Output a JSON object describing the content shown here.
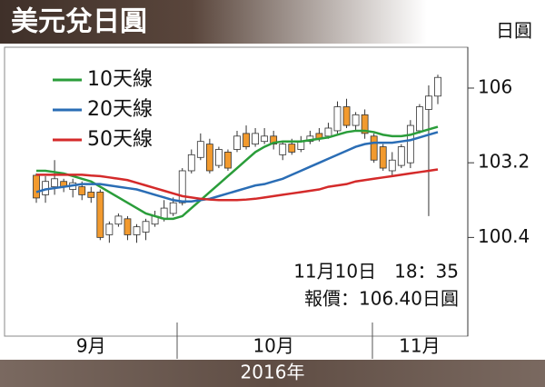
{
  "chart_data": {
    "type": "candlestick",
    "title": "美元兌日圓",
    "y_label": "日圓",
    "x_label": "2016年",
    "categories": [
      null,
      null,
      null,
      null,
      null,
      null,
      "9月",
      null,
      null,
      null,
      null,
      null,
      null,
      null,
      null,
      null,
      null,
      null,
      null,
      null,
      null,
      null,
      null,
      null,
      null,
      null,
      "10月",
      null,
      null,
      null,
      null,
      null,
      null,
      null,
      null,
      null,
      null,
      null,
      null,
      null,
      null,
      null,
      "11月",
      null,
      null
    ],
    "open": [
      102.73,
      102.0,
      102.3,
      102.5,
      102.2,
      102.3,
      102.1,
      102.1,
      100.5,
      100.9,
      101.1,
      100.5,
      100.6,
      100.9,
      101.1,
      101.3,
      101.7,
      102.9,
      103.4,
      103.9,
      103.1,
      103.6,
      103.7,
      104.3,
      103.9,
      104.0,
      104.2,
      103.5,
      103.9,
      103.7,
      104.0,
      104.3,
      104.2,
      104.4,
      105.3,
      104.6,
      105.0,
      104.2,
      103.8,
      102.9,
      103.1,
      103.2,
      104.4,
      105.2,
      105.7
    ],
    "high": [
      102.8,
      102.7,
      103.3,
      102.6,
      102.6,
      102.5,
      102.3,
      102.2,
      101.0,
      101.3,
      101.2,
      100.9,
      101.1,
      101.4,
      101.8,
      101.9,
      103.0,
      103.7,
      104.3,
      104.1,
      103.8,
      103.7,
      104.4,
      104.6,
      104.5,
      104.5,
      104.4,
      104.0,
      104.1,
      104.2,
      104.4,
      104.5,
      104.7,
      105.5,
      105.6,
      105.1,
      105.2,
      104.3,
      103.9,
      103.6,
      103.9,
      104.8,
      105.4,
      106.1,
      106.5
    ],
    "low": [
      101.7,
      101.7,
      102.0,
      102.1,
      101.9,
      101.8,
      101.7,
      100.3,
      100.2,
      100.8,
      100.3,
      100.2,
      100.3,
      100.8,
      101.0,
      101.2,
      101.6,
      102.8,
      103.3,
      102.8,
      103.0,
      102.9,
      103.6,
      103.7,
      103.8,
      103.9,
      103.7,
      103.3,
      103.5,
      103.6,
      103.9,
      104.0,
      104.1,
      104.3,
      104.5,
      104.4,
      104.1,
      103.2,
      102.9,
      102.7,
      103.0,
      103.0,
      104.3,
      101.2,
      105.4
    ],
    "close": [
      101.88,
      102.5,
      102.6,
      102.3,
      102.45,
      102.0,
      101.9,
      100.4,
      100.9,
      101.2,
      100.5,
      100.8,
      101.0,
      101.2,
      101.5,
      101.7,
      102.9,
      103.5,
      104.0,
      102.9,
      103.7,
      103.0,
      104.2,
      103.8,
      104.3,
      104.2,
      103.9,
      103.9,
      103.6,
      104.0,
      104.2,
      104.1,
      104.5,
      105.3,
      104.6,
      105.0,
      104.3,
      103.3,
      103.0,
      103.3,
      103.8,
      104.6,
      105.3,
      105.7,
      106.4
    ],
    "up_color": "#ffffff",
    "down_color": "#f29a2e",
    "series": [
      {
        "name": "10天線",
        "color": "#2a9d3a",
        "values": [
          102.9,
          102.9,
          102.85,
          102.8,
          102.7,
          102.6,
          102.5,
          102.3,
          102.1,
          101.9,
          101.7,
          101.5,
          101.3,
          101.2,
          101.1,
          101.1,
          101.2,
          101.5,
          101.8,
          102.1,
          102.4,
          102.7,
          103.0,
          103.3,
          103.6,
          103.8,
          103.95,
          104.0,
          104.0,
          104.0,
          104.05,
          104.1,
          104.15,
          104.25,
          104.35,
          104.4,
          104.4,
          104.35,
          104.25,
          104.2,
          104.2,
          104.25,
          104.35,
          104.45,
          104.55
        ]
      },
      {
        "name": "20天線",
        "color": "#2a6db5",
        "values": [
          102.1,
          102.2,
          102.25,
          102.3,
          102.35,
          102.4,
          102.4,
          102.4,
          102.35,
          102.3,
          102.25,
          102.2,
          102.1,
          102.0,
          101.9,
          101.8,
          101.75,
          101.75,
          101.8,
          101.85,
          101.95,
          102.05,
          102.15,
          102.25,
          102.35,
          102.4,
          102.5,
          102.6,
          102.75,
          102.9,
          103.05,
          103.2,
          103.35,
          103.5,
          103.65,
          103.8,
          103.9,
          103.95,
          103.95,
          103.95,
          104.0,
          104.05,
          104.15,
          104.25,
          104.35
        ]
      },
      {
        "name": "50天線",
        "color": "#d42a2a",
        "values": [
          102.75,
          102.75,
          102.75,
          102.75,
          102.75,
          102.75,
          102.72,
          102.7,
          102.65,
          102.6,
          102.55,
          102.45,
          102.35,
          102.25,
          102.15,
          102.05,
          101.95,
          101.9,
          101.85,
          101.82,
          101.8,
          101.8,
          101.8,
          101.82,
          101.85,
          101.9,
          101.95,
          102.0,
          102.05,
          102.1,
          102.15,
          102.2,
          102.3,
          102.35,
          102.4,
          102.5,
          102.55,
          102.6,
          102.65,
          102.7,
          102.75,
          102.8,
          102.85,
          102.9,
          102.95
        ]
      }
    ],
    "ylim": [
      96.7,
      107.6
    ],
    "yticks": [
      106,
      103.2,
      100.4
    ],
    "annotations": [
      "11月10日　18：35",
      "報價：106.40日圓"
    ]
  }
}
